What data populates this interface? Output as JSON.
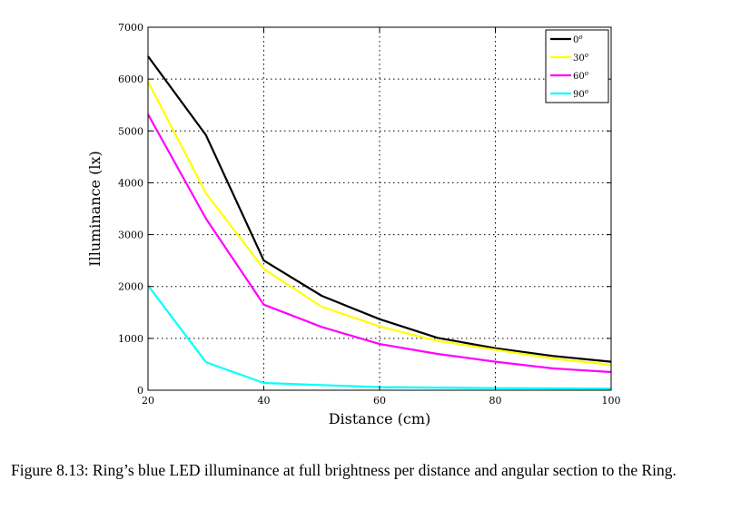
{
  "chart_data": {
    "type": "line",
    "title": "",
    "xlabel": "Distance (cm)",
    "ylabel": "Illuminance (lx)",
    "xlim": [
      20,
      100
    ],
    "ylim": [
      0,
      7000
    ],
    "xticks": [
      20,
      40,
      60,
      80,
      100
    ],
    "yticks": [
      0,
      1000,
      2000,
      3000,
      4000,
      5000,
      6000,
      7000
    ],
    "grid": true,
    "legend_position": "top-right",
    "x": [
      20,
      30,
      40,
      50,
      60,
      70,
      80,
      90,
      100
    ],
    "series": [
      {
        "name": "0",
        "name_superscript": "o",
        "color": "#000000",
        "values": [
          6440,
          4920,
          2500,
          1820,
          1370,
          1010,
          810,
          660,
          550
        ]
      },
      {
        "name": "30",
        "name_superscript": "o",
        "color": "#ffff00",
        "values": [
          5950,
          3800,
          2340,
          1610,
          1230,
          950,
          780,
          610,
          490
        ]
      },
      {
        "name": "60",
        "name_superscript": "o",
        "color": "#ff00ff",
        "values": [
          5320,
          3310,
          1650,
          1220,
          890,
          700,
          550,
          420,
          350
        ]
      },
      {
        "name": "90",
        "name_superscript": "o",
        "color": "#00ffff",
        "values": [
          2020,
          540,
          140,
          100,
          60,
          50,
          40,
          35,
          30
        ]
      }
    ]
  },
  "caption": "Figure 8.13: Ring’s blue LED illuminance at full brightness per distance and angular section to the Ring."
}
